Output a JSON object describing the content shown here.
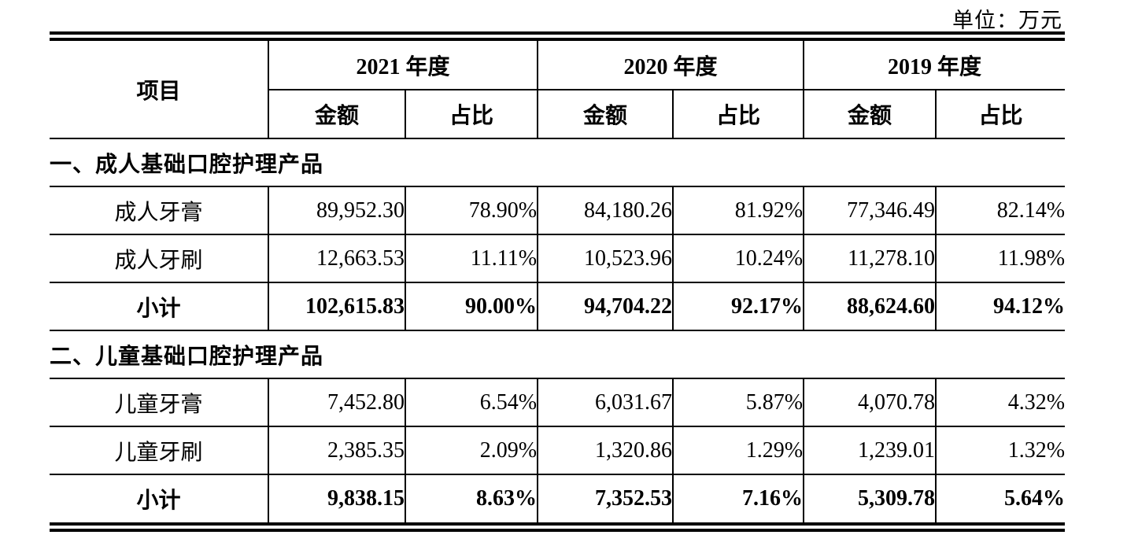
{
  "page": {
    "unit_label": "单位：万元"
  },
  "table": {
    "header": {
      "item_col": "项目",
      "year_groups": [
        {
          "label": "2021 年度",
          "sub": [
            "金额",
            "占比"
          ]
        },
        {
          "label": "2020 年度",
          "sub": [
            "金额",
            "占比"
          ]
        },
        {
          "label": "2019 年度",
          "sub": [
            "金额",
            "占比"
          ]
        }
      ]
    },
    "sections": [
      {
        "title": "一、成人基础口腔护理产品",
        "rows": [
          {
            "label": "成人牙膏",
            "bold": false,
            "values": [
              "89,952.30",
              "78.90%",
              "84,180.26",
              "81.92%",
              "77,346.49",
              "82.14%"
            ]
          },
          {
            "label": "成人牙刷",
            "bold": false,
            "values": [
              "12,663.53",
              "11.11%",
              "10,523.96",
              "10.24%",
              "11,278.10",
              "11.98%"
            ]
          },
          {
            "label": "小计",
            "bold": true,
            "values": [
              "102,615.83",
              "90.00%",
              "94,704.22",
              "92.17%",
              "88,624.60",
              "94.12%"
            ]
          }
        ]
      },
      {
        "title": "二、儿童基础口腔护理产品",
        "rows": [
          {
            "label": "儿童牙膏",
            "bold": false,
            "values": [
              "7,452.80",
              "6.54%",
              "6,031.67",
              "5.87%",
              "4,070.78",
              "4.32%"
            ]
          },
          {
            "label": "儿童牙刷",
            "bold": false,
            "values": [
              "2,385.35",
              "2.09%",
              "1,320.86",
              "1.29%",
              "1,239.01",
              "1.32%"
            ]
          },
          {
            "label": "小计",
            "bold": true,
            "values": [
              "9,838.15",
              "8.63%",
              "7,352.53",
              "7.16%",
              "5,309.78",
              "5.64%"
            ]
          }
        ]
      }
    ]
  }
}
